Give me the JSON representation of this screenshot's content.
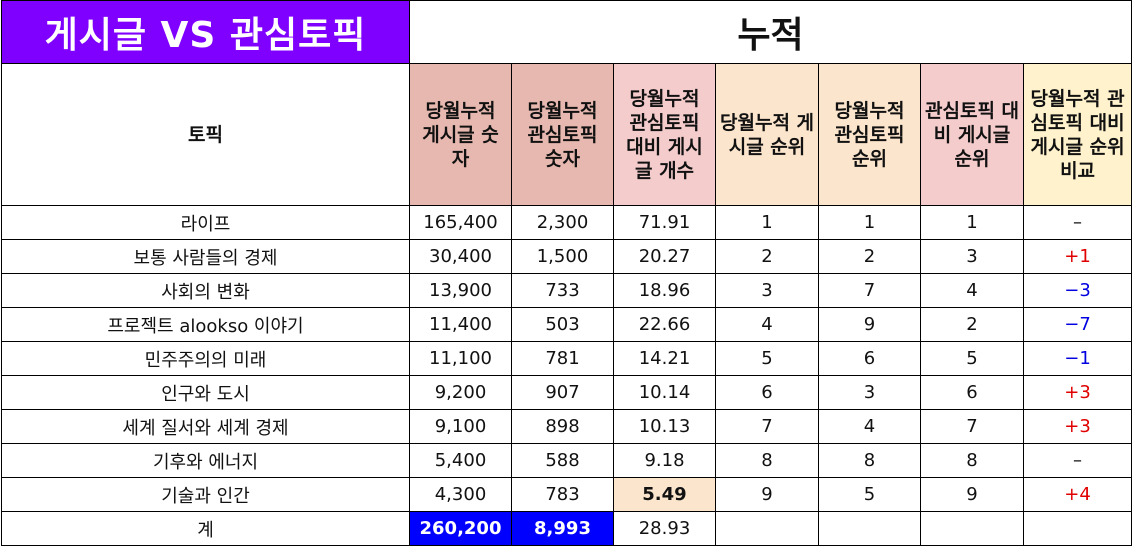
{
  "header": {
    "left_title": "게시글 VS 관심토픽",
    "right_title": "누적"
  },
  "columns": [
    "토픽",
    "당월누적 게시글 숫자",
    "당월누적 관심토픽 숫자",
    "당월누적 관심토픽 대비 게시글 개수",
    "당월누적 게시글 순위",
    "당월누적 관심토픽 순위",
    "관심토픽 대비 게시글 순위",
    "당월누적 관심토픽 대비 게시글 순위 비교"
  ],
  "rows": [
    {
      "topic": "라이프",
      "posts": "165,400",
      "interest": "2,300",
      "ratio": "71.91",
      "post_rank": "1",
      "interest_rank": "1",
      "ratio_rank": "1",
      "change": "–"
    },
    {
      "topic": "보통 사람들의 경제",
      "posts": "30,400",
      "interest": "1,500",
      "ratio": "20.27",
      "post_rank": "2",
      "interest_rank": "2",
      "ratio_rank": "3",
      "change": "+1"
    },
    {
      "topic": "사회의 변화",
      "posts": "13,900",
      "interest": "733",
      "ratio": "18.96",
      "post_rank": "3",
      "interest_rank": "7",
      "ratio_rank": "4",
      "change": "−3"
    },
    {
      "topic": "프로젝트 alookso 이야기",
      "posts": "11,400",
      "interest": "503",
      "ratio": "22.66",
      "post_rank": "4",
      "interest_rank": "9",
      "ratio_rank": "2",
      "change": "−7"
    },
    {
      "topic": "민주주의의 미래",
      "posts": "11,100",
      "interest": "781",
      "ratio": "14.21",
      "post_rank": "5",
      "interest_rank": "6",
      "ratio_rank": "5",
      "change": "−1"
    },
    {
      "topic": "인구와 도시",
      "posts": "9,200",
      "interest": "907",
      "ratio": "10.14",
      "post_rank": "6",
      "interest_rank": "3",
      "ratio_rank": "6",
      "change": "+3"
    },
    {
      "topic": "세계 질서와 세계 경제",
      "posts": "9,100",
      "interest": "898",
      "ratio": "10.13",
      "post_rank": "7",
      "interest_rank": "4",
      "ratio_rank": "7",
      "change": "+3"
    },
    {
      "topic": "기후와 에너지",
      "posts": "5,400",
      "interest": "588",
      "ratio": "9.18",
      "post_rank": "8",
      "interest_rank": "8",
      "ratio_rank": "8",
      "change": "–"
    },
    {
      "topic": "기술과 인간",
      "posts": "4,300",
      "interest": "783",
      "ratio": "5.49",
      "post_rank": "9",
      "interest_rank": "5",
      "ratio_rank": "9",
      "change": "+4"
    }
  ],
  "total": {
    "label": "계",
    "posts": "260,200",
    "interest": "8,993",
    "ratio": "28.93"
  },
  "colors": {
    "title_bg": "#8000ff",
    "header_rose": "#e6b8af",
    "header_pink": "#f4cccc",
    "header_peach": "#fce5cd",
    "header_yellow": "#fff2cc",
    "highlight_peach": "#fce5cd",
    "total_blue": "#0000ff",
    "positive": "#e00000",
    "negative": "#0000e0"
  }
}
